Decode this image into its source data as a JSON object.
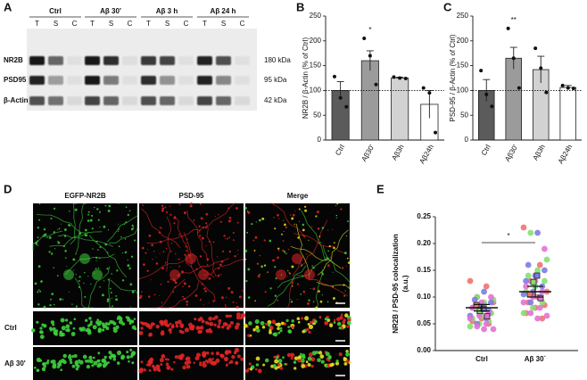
{
  "panel_labels": [
    "A",
    "B",
    "C",
    "D",
    "E"
  ],
  "blot": {
    "groups": [
      "Ctrl",
      "Aβ 30'",
      "Aβ 3 h",
      "Aβ 24 h"
    ],
    "lanes": [
      "T",
      "S",
      "C"
    ],
    "rows": [
      "NR2B",
      "PSD95",
      "β-Actin"
    ],
    "sizes": [
      "180 kDa",
      "95 kDa",
      "42 kDa"
    ]
  },
  "micrographs": {
    "columns": [
      "EGFP-NR2B",
      "PSD-95",
      "Merge"
    ],
    "rows": [
      "Ctrl",
      "Aβ 30'"
    ]
  },
  "chart_data": [
    {
      "type": "bar",
      "y_label": "NR2B / β-Actin (% of Ctrl)",
      "categories": [
        "Ctrl",
        "Aβ30'",
        "Aβ3h",
        "Aβ24h"
      ],
      "values": [
        100,
        160,
        125,
        72
      ],
      "errors": [
        18,
        20,
        2,
        28
      ],
      "points": [
        [
          128,
          85,
          67
        ],
        [
          205,
          170,
          112
        ],
        [
          127,
          125,
          124
        ],
        [
          105,
          95,
          15
        ]
      ],
      "colors": [
        "#5b5b5b",
        "#9b9b9b",
        "#d2d2d2",
        "#ffffff"
      ],
      "significance": [
        null,
        "*",
        null,
        null
      ],
      "reference_line": 100,
      "ylim": [
        0,
        250
      ],
      "yticks": [
        0,
        50,
        100,
        150,
        200,
        250
      ]
    },
    {
      "type": "bar",
      "y_label": "PSD-95 / β-Actin (% of Ctrl)",
      "categories": [
        "Ctrl",
        "Aβ30'",
        "Aβ3h",
        "Aβ24h"
      ],
      "values": [
        100,
        165,
        142,
        106
      ],
      "errors": [
        22,
        22,
        27,
        4
      ],
      "points": [
        [
          140,
          92,
          68
        ],
        [
          225,
          165,
          105
        ],
        [
          185,
          145,
          96
        ],
        [
          110,
          105,
          104
        ]
      ],
      "colors": [
        "#5b5b5b",
        "#9b9b9b",
        "#d2d2d2",
        "#ffffff"
      ],
      "significance": [
        null,
        "**",
        null,
        null
      ],
      "reference_line": 100,
      "ylim": [
        0,
        250
      ],
      "yticks": [
        0,
        50,
        100,
        150,
        200,
        250
      ]
    },
    {
      "type": "dotplot",
      "y_label": [
        "NR2B / PSD-95 colocalization",
        "(a.u.)"
      ],
      "categories": [
        "Ctrl",
        "Aβ 30´"
      ],
      "series": [
        {
          "color": "#f07272",
          "values": [
            [
              0.13,
              0.12,
              0.1,
              0.09,
              0.085,
              0.08,
              0.07,
              0.06,
              0.055,
              0.05
            ],
            [
              0.23,
              0.16,
              0.13,
              0.11,
              0.1,
              0.09,
              0.085,
              0.08,
              0.07,
              0.06
            ]
          ],
          "means": [
            0.085,
            0.105
          ]
        },
        {
          "color": "#86e070",
          "values": [
            [
              0.1,
              0.095,
              0.09,
              0.08,
              0.07,
              0.065,
              0.06,
              0.055,
              0.05,
              0.045
            ],
            [
              0.22,
              0.17,
              0.15,
              0.14,
              0.13,
              0.12,
              0.11,
              0.09,
              0.08,
              0.07
            ]
          ],
          "means": [
            0.074,
            0.128
          ]
        },
        {
          "color": "#7c7ce4",
          "values": [
            [
              0.11,
              0.095,
              0.09,
              0.085,
              0.08,
              0.075,
              0.07,
              0.065,
              0.06,
              0.05
            ],
            [
              0.22,
              0.16,
              0.15,
              0.14,
              0.13,
              0.12,
              0.11,
              0.105,
              0.1,
              0.09
            ]
          ],
          "means": [
            0.078,
            0.14
          ]
        },
        {
          "color": "#e272d4",
          "values": [
            [
              0.1,
              0.09,
              0.08,
              0.07,
              0.065,
              0.06,
              0.05,
              0.045,
              0.04,
              0.04
            ],
            [
              0.19,
              0.13,
              0.12,
              0.11,
              0.1,
              0.09,
              0.08,
              0.07,
              0.065,
              0.06
            ]
          ],
          "means": [
            0.064,
            0.098
          ]
        }
      ],
      "means": [
        0.08,
        0.11
      ],
      "errors": [
        0.006,
        0.01
      ],
      "significance": "*",
      "ylim": [
        0,
        0.25
      ],
      "yticks": [
        {
          "value": 0,
          "label": "0.00"
        },
        0.05,
        {
          "value": 0.1,
          "label": "0.10"
        },
        0.15,
        {
          "value": 0.2,
          "label": "0.20"
        },
        0.25
      ]
    }
  ]
}
